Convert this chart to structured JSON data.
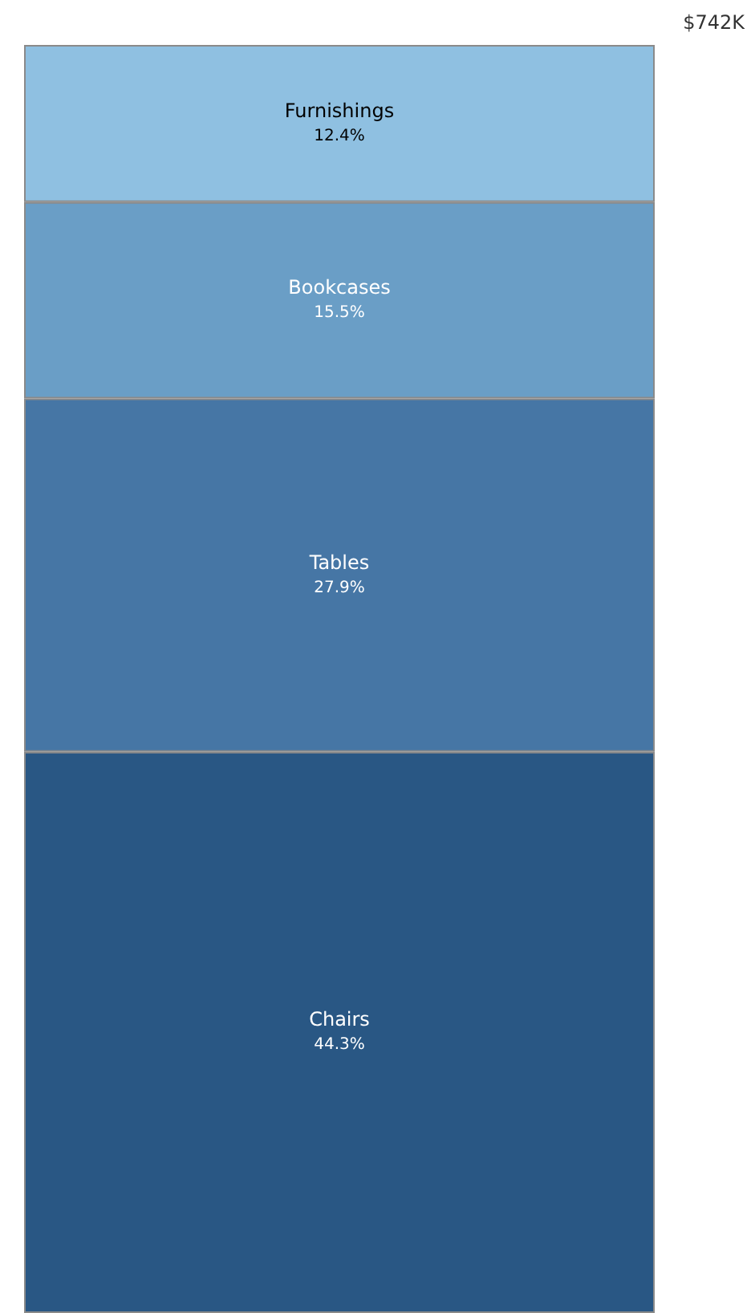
{
  "chart_data": {
    "type": "bar",
    "stacked": true,
    "categories": [
      null
    ],
    "series": [
      {
        "name": "Chairs",
        "color": "#295784",
        "values": [
          44.3
        ],
        "value_labels": [
          "44.3%"
        ]
      },
      {
        "name": "Tables",
        "color": "#4676a5",
        "values": [
          27.9
        ],
        "value_labels": [
          "27.9%"
        ]
      },
      {
        "name": "Bookcases",
        "color": "#6a9ec6",
        "values": [
          15.5
        ],
        "value_labels": [
          "15.5%"
        ]
      },
      {
        "name": "Furnishings",
        "color": "#8fc0e1",
        "values": [
          12.4
        ],
        "value_labels": [
          "12.4%"
        ]
      }
    ],
    "annotations": [
      "$742K"
    ]
  }
}
